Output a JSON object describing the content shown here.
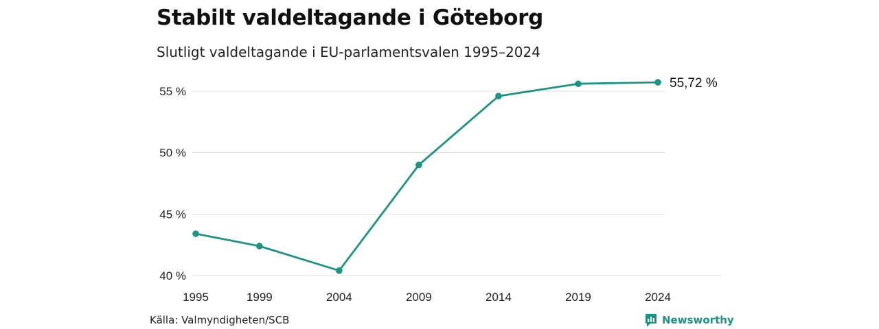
{
  "header": {
    "title": "Stabilt valdeltagande i Göteborg",
    "subtitle": "Slutligt valdeltagande i EU-parlamentsvalen 1995–2024"
  },
  "footer": {
    "source": "Källa: Valmyndigheten/SCB",
    "brand": "Newsworthy",
    "brand_icon": "bar-chart-speech-bubble-icon"
  },
  "colors": {
    "line": "#1a9483",
    "brand": "#1a9483",
    "grid": "#dddddd"
  },
  "chart_data": {
    "type": "line",
    "title": "Stabilt valdeltagande i Göteborg",
    "subtitle": "Slutligt valdeltagande i EU-parlamentsvalen 1995–2024",
    "categories": [
      "1995",
      "1999",
      "2004",
      "2009",
      "2014",
      "2019",
      "2024"
    ],
    "values": [
      43.4,
      42.4,
      40.4,
      49.0,
      54.6,
      55.6,
      55.72
    ],
    "ylim": [
      40,
      56
    ],
    "yticks": [
      40,
      45,
      50,
      55
    ],
    "ytick_labels": [
      "40 %",
      "45 %",
      "50 %",
      "55 %"
    ],
    "end_label": "55,72 %",
    "grid": true,
    "legend": "none"
  }
}
